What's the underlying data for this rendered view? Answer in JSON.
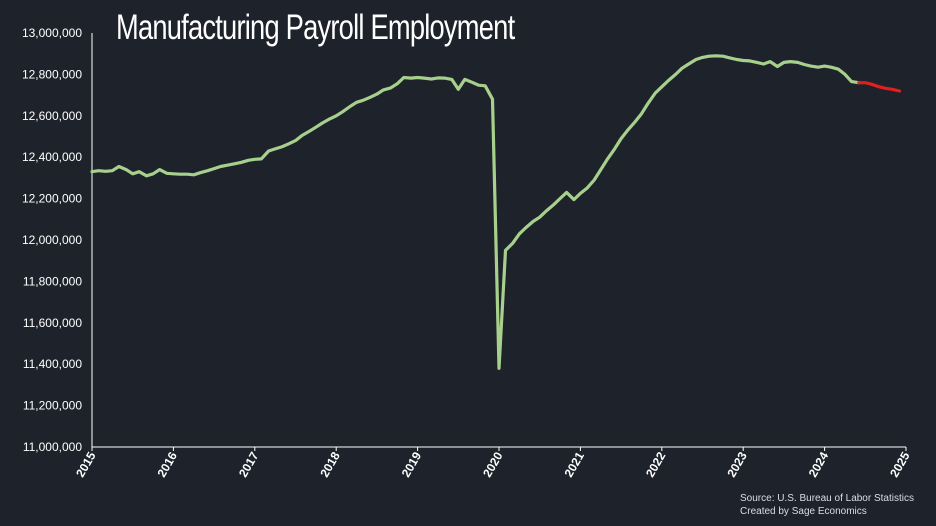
{
  "chart_data": {
    "type": "line",
    "title": "Manufacturing Payroll Employment",
    "xlabel": "",
    "ylabel": "",
    "ylim": [
      11000000,
      13000000
    ],
    "xlim": [
      2015,
      2025
    ],
    "yticks": [
      "11,000,000",
      "11,200,000",
      "11,400,000",
      "11,600,000",
      "11,800,000",
      "12,000,000",
      "12,200,000",
      "12,400,000",
      "12,600,000",
      "12,800,000",
      "13,000,000"
    ],
    "xticks": [
      "2015",
      "2016",
      "2017",
      "2018",
      "2019",
      "2020",
      "2021",
      "2022",
      "2023",
      "2024",
      "2025"
    ],
    "grid": false,
    "colors": {
      "main": "#a8d08d",
      "highlight": "#e0201e",
      "axis": "#ffffff",
      "background": "#1e222b"
    },
    "series": [
      {
        "x": [
          2015.0,
          2015.08,
          2015.17,
          2015.25,
          2015.33,
          2015.42,
          2015.5,
          2015.58,
          2015.67,
          2015.75,
          2015.83,
          2015.92,
          2016.0,
          2016.08,
          2016.17,
          2016.25,
          2016.33,
          2016.42,
          2016.5,
          2016.58,
          2016.67,
          2016.75,
          2016.83,
          2016.92,
          2017.0,
          2017.08,
          2017.17,
          2017.25,
          2017.33,
          2017.42,
          2017.5,
          2017.58,
          2017.67,
          2017.75,
          2017.83,
          2017.92,
          2018.0,
          2018.08,
          2018.17,
          2018.25,
          2018.33,
          2018.42,
          2018.5,
          2018.58,
          2018.67,
          2018.75,
          2018.83,
          2018.92,
          2019.0,
          2019.08,
          2019.17,
          2019.25,
          2019.33,
          2019.42,
          2019.5,
          2019.58,
          2019.67,
          2019.75,
          2019.83,
          2019.92,
          2020.0,
          2020.08,
          2020.17,
          2020.25,
          2020.33,
          2020.42,
          2020.5,
          2020.58,
          2020.67,
          2020.75,
          2020.83,
          2020.92,
          2021.0,
          2021.08,
          2021.17,
          2021.25,
          2021.33,
          2021.42,
          2021.5,
          2021.58,
          2021.67,
          2021.75,
          2021.83,
          2021.92,
          2022.0,
          2022.08,
          2022.17,
          2022.25,
          2022.33,
          2022.42,
          2022.5,
          2022.58,
          2022.67,
          2022.75,
          2022.83,
          2022.92,
          2023.0,
          2023.08,
          2023.17,
          2023.25,
          2023.33,
          2023.42,
          2023.5,
          2023.58,
          2023.67,
          2023.75,
          2023.83,
          2023.92,
          2024.0,
          2024.08,
          2024.17,
          2024.25,
          2024.33,
          2024.42
        ],
        "values": [
          12330000,
          12335000,
          12332000,
          12335000,
          12355000,
          12340000,
          12320000,
          12330000,
          12310000,
          12320000,
          12340000,
          12322000,
          12320000,
          12318000,
          12318000,
          12315000,
          12325000,
          12335000,
          12345000,
          12355000,
          12362000,
          12368000,
          12375000,
          12385000,
          12390000,
          12392000,
          12430000,
          12440000,
          12450000,
          12465000,
          12480000,
          12505000,
          12525000,
          12545000,
          12565000,
          12585000,
          12600000,
          12620000,
          12645000,
          12665000,
          12675000,
          12690000,
          12705000,
          12725000,
          12735000,
          12755000,
          12785000,
          12782000,
          12785000,
          12782000,
          12778000,
          12783000,
          12782000,
          12776000,
          12728000,
          12776000,
          12762000,
          12748000,
          12745000,
          12680000,
          11380000,
          11950000,
          11985000,
          12030000,
          12060000,
          12090000,
          12110000,
          12140000,
          12170000,
          12200000,
          12230000,
          12195000,
          12225000,
          12250000,
          12290000,
          12340000,
          12390000,
          12440000,
          12490000,
          12530000,
          12570000,
          12610000,
          12660000,
          12710000,
          12740000,
          12770000,
          12800000,
          12830000,
          12850000,
          12872000,
          12882000,
          12888000,
          12890000,
          12888000,
          12880000,
          12872000,
          12867000,
          12865000,
          12858000,
          12850000,
          12862000,
          12838000,
          12858000,
          12862000,
          12858000,
          12848000,
          12840000,
          12835000,
          12840000,
          12835000,
          12825000,
          12800000,
          12765000,
          12760000
        ],
        "color": "#a8d08d"
      },
      {
        "x": [
          2024.42,
          2024.5,
          2024.58,
          2024.67,
          2024.75,
          2024.83,
          2024.92
        ],
        "values": [
          12760000,
          12760000,
          12752000,
          12740000,
          12733000,
          12728000,
          12720000
        ],
        "color": "#e0201e"
      }
    ]
  },
  "footer": {
    "source_line1": "Source: U.S. Bureau of Labor Statistics",
    "source_line2": "Created by Sage Economics"
  }
}
